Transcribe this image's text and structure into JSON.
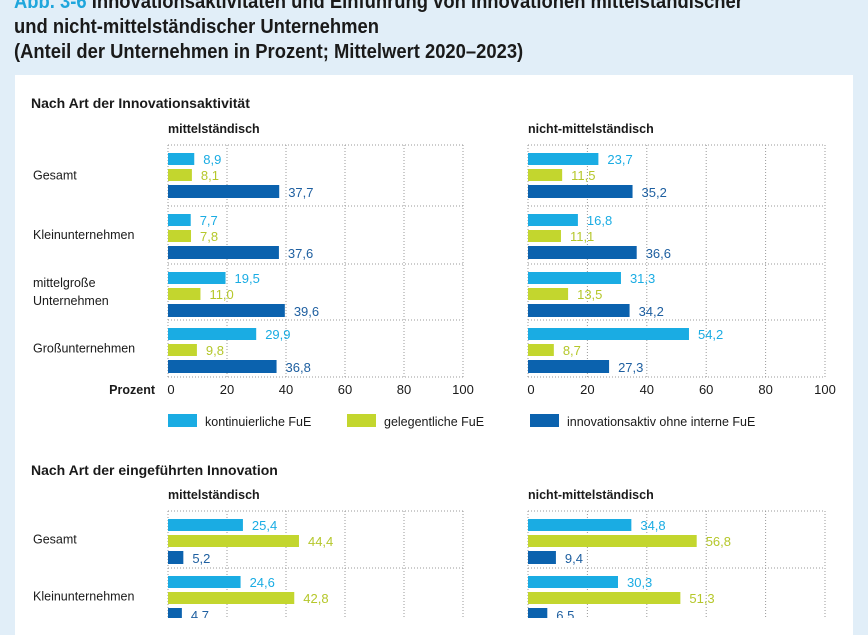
{
  "header": {
    "figure_label": "Abb. 3-6",
    "title_line1": "Innovationsaktivitäten und Einführung von Innovationen mittelständischer",
    "title_line2": "und nicht-mittelständischer Unternehmen",
    "title_line3": "(Anteil der Unternehmen in Prozent; Mittelwert 2020–2023)"
  },
  "colors": {
    "kontinuierlich": "#1aace3",
    "gelegentlich": "#c3d62e",
    "ohne_interne": "#0b62ae",
    "background": "#e1eef8"
  },
  "chart_data": [
    {
      "type": "bar",
      "orientation": "horizontal",
      "section_title": "Nach Art der Innovationsaktivität",
      "panels": [
        {
          "title": "mittelständisch",
          "categories": [
            "Gesamt",
            "Kleinunternehmen",
            "mittelgroße Unternehmen",
            "Großunternehmen"
          ],
          "series": [
            {
              "name": "kontinuierliche FuE",
              "values": [
                8.9,
                7.7,
                19.5,
                29.9
              ],
              "labels": [
                "8,9",
                "7,7",
                "19,5",
                "29,9"
              ]
            },
            {
              "name": "gelegentliche FuE",
              "values": [
                8.1,
                7.8,
                11.0,
                9.8
              ],
              "labels": [
                "8,1",
                "7,8",
                "11,0",
                "9,8"
              ]
            },
            {
              "name": "innovationsaktiv ohne interne FuE",
              "values": [
                37.7,
                37.6,
                39.6,
                36.8
              ],
              "labels": [
                "37,7",
                "37,6",
                "39,6",
                "36,8"
              ]
            }
          ]
        },
        {
          "title": "nicht-mittelständisch",
          "categories": [
            "Gesamt",
            "Kleinunternehmen",
            "mittelgroße Unternehmen",
            "Großunternehmen"
          ],
          "series": [
            {
              "name": "kontinuierliche FuE",
              "values": [
                23.7,
                16.8,
                31.3,
                54.2
              ],
              "labels": [
                "23,7",
                "16,8",
                "31,3",
                "54,2"
              ]
            },
            {
              "name": "gelegentliche FuE",
              "values": [
                11.5,
                11.1,
                13.5,
                8.7
              ],
              "labels": [
                "11,5",
                "11,1",
                "13,5",
                "8,7"
              ]
            },
            {
              "name": "innovationsaktiv ohne interne FuE",
              "values": [
                35.2,
                36.6,
                34.2,
                27.3
              ],
              "labels": [
                "35,2",
                "36,6",
                "34,2",
                "27,3"
              ]
            }
          ]
        }
      ],
      "xlabel": "Prozent",
      "xlim": [
        0,
        100
      ],
      "xticks": [
        "0",
        "20",
        "40",
        "60",
        "80",
        "100"
      ],
      "grid": true,
      "legend": [
        "kontinuierliche FuE",
        "gelegentliche FuE",
        "innovationsaktiv ohne interne FuE"
      ],
      "legend_position": "bottom"
    },
    {
      "type": "bar",
      "orientation": "horizontal",
      "section_title": "Nach Art der eingeführten Innovation",
      "panels": [
        {
          "title": "mittelständisch",
          "categories": [
            "Gesamt",
            "Kleinunternehmen"
          ],
          "series": [
            {
              "name": "series-1",
              "values": [
                25.4,
                24.6
              ],
              "labels": [
                "25,4",
                "24,6"
              ]
            },
            {
              "name": "series-2",
              "values": [
                44.4,
                42.8
              ],
              "labels": [
                "44,4",
                "42,8"
              ]
            },
            {
              "name": "series-3",
              "values": [
                5.2,
                4.7
              ],
              "labels": [
                "5,2",
                "4,7"
              ]
            }
          ]
        },
        {
          "title": "nicht-mittelständisch",
          "categories": [
            "Gesamt",
            "Kleinunternehmen"
          ],
          "series": [
            {
              "name": "series-1",
              "values": [
                34.8,
                30.3
              ],
              "labels": [
                "34,8",
                "30,3"
              ]
            },
            {
              "name": "series-2",
              "values": [
                56.8,
                51.3
              ],
              "labels": [
                "56,8",
                "51,3"
              ]
            },
            {
              "name": "series-3",
              "values": [
                9.4,
                6.5
              ],
              "labels": [
                "9,4",
                "6,5"
              ]
            }
          ]
        }
      ],
      "xlim": [
        0,
        100
      ],
      "grid": true
    }
  ]
}
